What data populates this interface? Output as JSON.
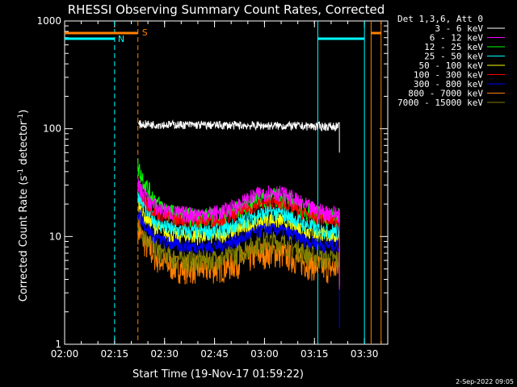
{
  "chart_data": {
    "type": "line",
    "title": "RHESSI Observing Summary Count Rates, Corrected",
    "xlabel": "Start Time (19-Nov-17 01:59:22)",
    "ylabel_main": "Corrected Count Rate (s",
    "ylabel_sup1": "-1",
    "ylabel_mid": " detector",
    "ylabel_sup2": "-1",
    "ylabel_end": ")",
    "ylog": true,
    "ylim": [
      1,
      1000
    ],
    "xlim_min": [
      0,
      97
    ],
    "yticks": [
      "1",
      "10",
      "100",
      "1000"
    ],
    "xticks": [
      {
        "label": "02:00",
        "min": 0
      },
      {
        "label": "02:15",
        "min": 15
      },
      {
        "label": "02:30",
        "min": 30
      },
      {
        "label": "02:45",
        "min": 45
      },
      {
        "label": "03:00",
        "min": 60
      },
      {
        "label": "03:15",
        "min": 75
      },
      {
        "label": "03:30",
        "min": 90
      }
    ],
    "legend_header": "Det 1,3,6, Att 0",
    "timestamp": "2-Sep-2022 09:05",
    "series": [
      {
        "name": "3 - 6 keV",
        "color": "#ffffff",
        "start": 110,
        "dip": 100,
        "end": 105,
        "noise": 0.03
      },
      {
        "name": "6 - 12 keV",
        "color": "#ff00ff",
        "start": 30,
        "dip": 16,
        "end": 20,
        "noise": 0.06
      },
      {
        "name": "12 - 25 keV",
        "color": "#00ff00",
        "start": 45,
        "dip": 15,
        "end": 18,
        "noise": 0.07
      },
      {
        "name": "25 - 50 keV",
        "color": "#00ffff",
        "start": 25,
        "dip": 11,
        "end": 13,
        "noise": 0.06
      },
      {
        "name": "50 - 100 keV",
        "color": "#ffff00",
        "start": 20,
        "dip": 10,
        "end": 11,
        "noise": 0.06
      },
      {
        "name": "100 - 300 keV",
        "color": "#ff0000",
        "start": 28,
        "dip": 14,
        "end": 16,
        "noise": 0.05
      },
      {
        "name": "300 - 800 keV",
        "color": "#0000ff",
        "start": 17,
        "dip": 8,
        "end": 9,
        "noise": 0.05
      },
      {
        "name": "800 - 7000 keV",
        "color": "#ff8000",
        "start": 12,
        "dip": 5,
        "end": 5.5,
        "noise": 0.1
      },
      {
        "name": "7000 - 15000 keV",
        "color": "#808000",
        "start": 14,
        "dip": 6,
        "end": 7,
        "noise": 0.08
      }
    ],
    "data_window_min": [
      22,
      82.5
    ],
    "annotations": {
      "night_label": "N",
      "saa_label": "S",
      "night_intervals_min": [
        [
          0,
          15
        ],
        [
          76,
          90
        ]
      ],
      "saa_intervals_min": [
        [
          0,
          22
        ],
        [
          92,
          95
        ]
      ],
      "night_color": "#00ffff",
      "saa_color": "#ff8000"
    }
  }
}
